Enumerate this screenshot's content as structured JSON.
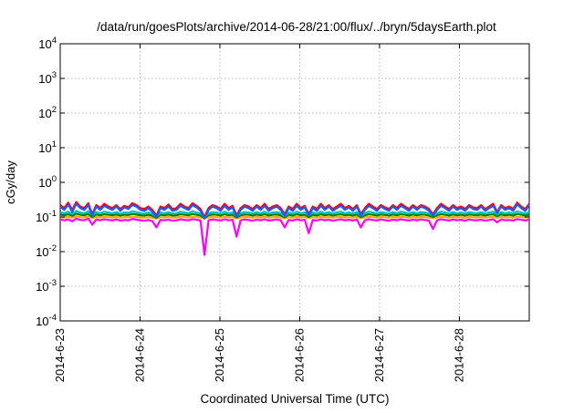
{
  "chart_data": {
    "type": "line",
    "title": "/data/run/goesPlots/archive/2014-06-28/21:00/flux/../bryn/5daysEarth.plot",
    "xlabel": "Coordinated Universal Time (UTC)",
    "ylabel": "cGy/day",
    "yscale": "log",
    "ylim": [
      0.0001,
      10000
    ],
    "xlim": [
      "2014-06-23 00:00",
      "2014-06-28 21:00"
    ],
    "grid": true,
    "x_ticks": [
      "2014-6-23",
      "2014-6-24",
      "2014-6-25",
      "2014-6-26",
      "2014-6-27",
      "2014-6-28"
    ],
    "y_ticks": [
      {
        "base": "10",
        "exp": "-4"
      },
      {
        "base": "10",
        "exp": "-3"
      },
      {
        "base": "10",
        "exp": "-2"
      },
      {
        "base": "10",
        "exp": "-1"
      },
      {
        "base": "10",
        "exp": "0"
      },
      {
        "base": "10",
        "exp": "1"
      },
      {
        "base": "10",
        "exp": "2"
      },
      {
        "base": "10",
        "exp": "3"
      },
      {
        "base": "10",
        "exp": "4"
      }
    ],
    "series": [
      {
        "color": "#ff00ff",
        "values": [
          0.085,
          0.08,
          0.085,
          0.075,
          0.09,
          0.082,
          0.08,
          0.09,
          0.06,
          0.085,
          0.08,
          0.086,
          0.082,
          0.08,
          0.085,
          0.078,
          0.082,
          0.08,
          0.088,
          0.084,
          0.08,
          0.078,
          0.082,
          0.076,
          0.05,
          0.082,
          0.08,
          0.084,
          0.078,
          0.08,
          0.086,
          0.082,
          0.08,
          0.087,
          0.083,
          0.079,
          0.008,
          0.08,
          0.085,
          0.082,
          0.079,
          0.086,
          0.08,
          0.083,
          0.027,
          0.08,
          0.085,
          0.082,
          0.078,
          0.084,
          0.08,
          0.086,
          0.079,
          0.082,
          0.085,
          0.08,
          0.05,
          0.082,
          0.079,
          0.086,
          0.08,
          0.083,
          0.034,
          0.082,
          0.079,
          0.086,
          0.08,
          0.084,
          0.078,
          0.082,
          0.086,
          0.08,
          0.083,
          0.079,
          0.085,
          0.05,
          0.08,
          0.086,
          0.082,
          0.079,
          0.085,
          0.081,
          0.078,
          0.084,
          0.08,
          0.086,
          0.082,
          0.079,
          0.084,
          0.08,
          0.085,
          0.082,
          0.078,
          0.045,
          0.08,
          0.086,
          0.082,
          0.079,
          0.085,
          0.08,
          0.083,
          0.078,
          0.085,
          0.081,
          0.08,
          0.084,
          0.078,
          0.082,
          0.086,
          0.07,
          0.085,
          0.08,
          0.082,
          0.079,
          0.087,
          0.083,
          0.079,
          0.084
        ]
      },
      {
        "color": "#ffa500",
        "values": [
          0.1,
          0.097,
          0.101,
          0.095,
          0.104,
          0.099,
          0.097,
          0.103,
          0.093,
          0.1,
          0.097,
          0.101,
          0.099,
          0.097,
          0.1,
          0.096,
          0.099,
          0.098,
          0.102,
          0.1,
          0.097,
          0.096,
          0.099,
          0.095,
          0.09,
          0.099,
          0.097,
          0.1,
          0.096,
          0.097,
          0.101,
          0.099,
          0.097,
          0.102,
          0.099,
          0.096,
          0.09,
          0.097,
          0.1,
          0.099,
          0.096,
          0.101,
          0.097,
          0.099,
          0.092,
          0.097,
          0.1,
          0.099,
          0.096,
          0.1,
          0.097,
          0.101,
          0.096,
          0.099,
          0.1,
          0.097,
          0.092,
          0.099,
          0.096,
          0.101,
          0.097,
          0.099,
          0.093,
          0.099,
          0.096,
          0.101,
          0.097,
          0.1,
          0.096,
          0.099,
          0.101,
          0.097,
          0.099,
          0.096,
          0.1,
          0.093,
          0.097,
          0.101,
          0.099,
          0.096,
          0.1,
          0.098,
          0.096,
          0.1,
          0.097,
          0.101,
          0.099,
          0.096,
          0.1,
          0.097,
          0.1,
          0.099,
          0.096,
          0.093,
          0.097,
          0.101,
          0.099,
          0.096,
          0.1,
          0.097,
          0.099,
          0.096,
          0.1,
          0.098,
          0.097,
          0.1,
          0.096,
          0.099,
          0.101,
          0.095,
          0.1,
          0.097,
          0.099,
          0.096,
          0.102,
          0.099,
          0.096,
          0.1
        ]
      },
      {
        "color": "#008000",
        "values": [
          0.118,
          0.112,
          0.12,
          0.108,
          0.125,
          0.116,
          0.112,
          0.123,
          0.1,
          0.118,
          0.112,
          0.12,
          0.116,
          0.112,
          0.118,
          0.11,
          0.116,
          0.114,
          0.122,
          0.118,
          0.112,
          0.11,
          0.116,
          0.108,
          0.095,
          0.116,
          0.112,
          0.118,
          0.11,
          0.112,
          0.12,
          0.116,
          0.112,
          0.122,
          0.116,
          0.11,
          0.094,
          0.112,
          0.118,
          0.116,
          0.11,
          0.12,
          0.112,
          0.116,
          0.097,
          0.112,
          0.118,
          0.116,
          0.11,
          0.118,
          0.112,
          0.12,
          0.11,
          0.116,
          0.118,
          0.112,
          0.098,
          0.116,
          0.11,
          0.12,
          0.112,
          0.116,
          0.1,
          0.116,
          0.11,
          0.12,
          0.112,
          0.118,
          0.11,
          0.116,
          0.12,
          0.112,
          0.116,
          0.11,
          0.118,
          0.099,
          0.112,
          0.12,
          0.116,
          0.11,
          0.118,
          0.114,
          0.11,
          0.118,
          0.112,
          0.12,
          0.116,
          0.11,
          0.118,
          0.112,
          0.118,
          0.116,
          0.11,
          0.1,
          0.112,
          0.12,
          0.116,
          0.11,
          0.118,
          0.112,
          0.116,
          0.11,
          0.118,
          0.114,
          0.112,
          0.118,
          0.11,
          0.116,
          0.12,
          0.106,
          0.118,
          0.112,
          0.116,
          0.11,
          0.122,
          0.116,
          0.11,
          0.118
        ]
      },
      {
        "color": "#00bfbf",
        "values": [
          0.138,
          0.128,
          0.142,
          0.122,
          0.15,
          0.135,
          0.128,
          0.146,
          0.11,
          0.138,
          0.128,
          0.142,
          0.135,
          0.128,
          0.138,
          0.125,
          0.135,
          0.132,
          0.145,
          0.138,
          0.128,
          0.125,
          0.135,
          0.122,
          0.102,
          0.135,
          0.128,
          0.138,
          0.125,
          0.128,
          0.142,
          0.135,
          0.128,
          0.145,
          0.135,
          0.125,
          0.1,
          0.128,
          0.138,
          0.135,
          0.125,
          0.142,
          0.128,
          0.135,
          0.104,
          0.128,
          0.138,
          0.135,
          0.125,
          0.138,
          0.128,
          0.142,
          0.125,
          0.135,
          0.138,
          0.128,
          0.106,
          0.135,
          0.125,
          0.142,
          0.128,
          0.135,
          0.11,
          0.135,
          0.125,
          0.142,
          0.128,
          0.138,
          0.125,
          0.135,
          0.142,
          0.128,
          0.135,
          0.125,
          0.138,
          0.108,
          0.128,
          0.142,
          0.135,
          0.125,
          0.138,
          0.132,
          0.125,
          0.138,
          0.128,
          0.142,
          0.135,
          0.125,
          0.138,
          0.128,
          0.138,
          0.135,
          0.125,
          0.11,
          0.128,
          0.142,
          0.135,
          0.125,
          0.138,
          0.128,
          0.135,
          0.125,
          0.138,
          0.132,
          0.128,
          0.138,
          0.125,
          0.135,
          0.142,
          0.118,
          0.138,
          0.128,
          0.135,
          0.125,
          0.145,
          0.135,
          0.125,
          0.138
        ]
      },
      {
        "color": "#ff0000",
        "values": [
          0.22,
          0.18,
          0.26,
          0.16,
          0.27,
          0.2,
          0.18,
          0.25,
          0.12,
          0.22,
          0.18,
          0.24,
          0.2,
          0.18,
          0.22,
          0.17,
          0.21,
          0.19,
          0.25,
          0.22,
          0.18,
          0.17,
          0.2,
          0.16,
          0.11,
          0.2,
          0.18,
          0.23,
          0.17,
          0.18,
          0.24,
          0.2,
          0.18,
          0.25,
          0.21,
          0.17,
          0.1,
          0.18,
          0.22,
          0.2,
          0.17,
          0.24,
          0.18,
          0.21,
          0.11,
          0.18,
          0.22,
          0.2,
          0.17,
          0.22,
          0.18,
          0.24,
          0.17,
          0.2,
          0.22,
          0.18,
          0.12,
          0.2,
          0.17,
          0.24,
          0.18,
          0.21,
          0.12,
          0.2,
          0.17,
          0.24,
          0.18,
          0.22,
          0.17,
          0.2,
          0.24,
          0.18,
          0.21,
          0.17,
          0.22,
          0.12,
          0.18,
          0.24,
          0.2,
          0.17,
          0.22,
          0.19,
          0.17,
          0.22,
          0.18,
          0.24,
          0.2,
          0.17,
          0.22,
          0.18,
          0.22,
          0.2,
          0.17,
          0.12,
          0.18,
          0.24,
          0.2,
          0.17,
          0.22,
          0.18,
          0.2,
          0.17,
          0.22,
          0.19,
          0.18,
          0.22,
          0.17,
          0.2,
          0.24,
          0.14,
          0.22,
          0.18,
          0.2,
          0.17,
          0.26,
          0.2,
          0.17,
          0.24
        ]
      },
      {
        "color": "#1e5bff",
        "values": [
          0.2,
          0.16,
          0.23,
          0.14,
          0.24,
          0.18,
          0.16,
          0.22,
          0.11,
          0.2,
          0.16,
          0.21,
          0.18,
          0.16,
          0.2,
          0.15,
          0.19,
          0.17,
          0.22,
          0.2,
          0.16,
          0.15,
          0.18,
          0.14,
          0.1,
          0.18,
          0.16,
          0.2,
          0.15,
          0.16,
          0.21,
          0.18,
          0.16,
          0.22,
          0.19,
          0.15,
          0.09,
          0.16,
          0.2,
          0.18,
          0.15,
          0.21,
          0.16,
          0.19,
          0.1,
          0.16,
          0.2,
          0.18,
          0.15,
          0.2,
          0.16,
          0.21,
          0.15,
          0.18,
          0.2,
          0.16,
          0.11,
          0.18,
          0.15,
          0.21,
          0.16,
          0.19,
          0.11,
          0.18,
          0.15,
          0.21,
          0.16,
          0.2,
          0.15,
          0.18,
          0.21,
          0.16,
          0.19,
          0.15,
          0.2,
          0.11,
          0.16,
          0.21,
          0.18,
          0.15,
          0.2,
          0.17,
          0.15,
          0.2,
          0.16,
          0.21,
          0.18,
          0.15,
          0.2,
          0.16,
          0.2,
          0.18,
          0.15,
          0.11,
          0.16,
          0.21,
          0.18,
          0.15,
          0.2,
          0.16,
          0.18,
          0.15,
          0.2,
          0.17,
          0.16,
          0.2,
          0.15,
          0.18,
          0.21,
          0.13,
          0.2,
          0.16,
          0.18,
          0.15,
          0.23,
          0.18,
          0.15,
          0.22
        ]
      }
    ]
  }
}
